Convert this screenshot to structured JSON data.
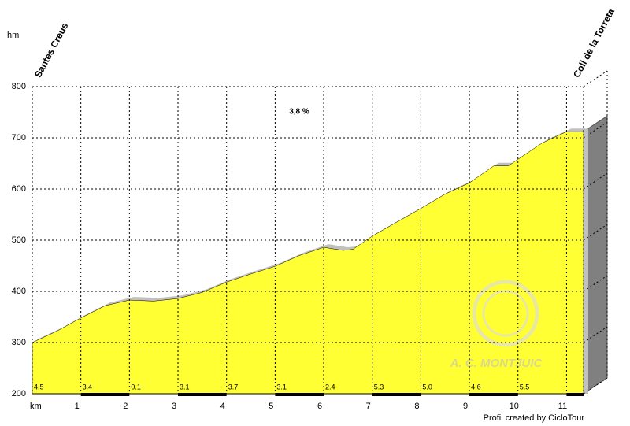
{
  "chart_data": {
    "type": "area",
    "y_label": "hm",
    "x_label": "km",
    "start_name": "Santes Creus",
    "end_name": "Coll de la Torreta",
    "annotation": "3,8 %",
    "credit": "Profil created by CicloTour",
    "watermark": "A. C. MONTJUIC",
    "color": "#ffff33",
    "shadow_color": "#c0c0c0",
    "x": [
      0,
      0.5,
      1,
      1.5,
      2,
      2.5,
      3,
      3.5,
      4,
      4.5,
      5,
      5.5,
      6,
      6.4,
      6.6,
      7,
      7.5,
      8,
      8.5,
      9,
      9.5,
      9.8,
      10,
      10.5,
      11,
      11.35
    ],
    "values": [
      300,
      322,
      348,
      372,
      383,
      381,
      386,
      398,
      418,
      434,
      449,
      470,
      486,
      480,
      482,
      508,
      535,
      562,
      590,
      612,
      645,
      645,
      658,
      690,
      712,
      712
    ],
    "grades": [
      4.5,
      3.4,
      0.1,
      3.1,
      3.7,
      3.1,
      2.4,
      5.3,
      5,
      4.6,
      5.5
    ],
    "grade_labels": [
      "4.5",
      "3.4",
      "0.1",
      "3.1",
      "3.7",
      "3.1",
      "2.4",
      "5.3",
      "5.0",
      "4.6",
      "5.5"
    ],
    "xlim": [
      0,
      11.35
    ],
    "xticks": [
      1,
      2,
      3,
      4,
      5,
      6,
      7,
      8,
      9,
      10,
      11
    ],
    "ylim": [
      200,
      800
    ],
    "yticks": [
      200,
      300,
      400,
      500,
      600,
      700,
      800
    ],
    "grid": true
  }
}
